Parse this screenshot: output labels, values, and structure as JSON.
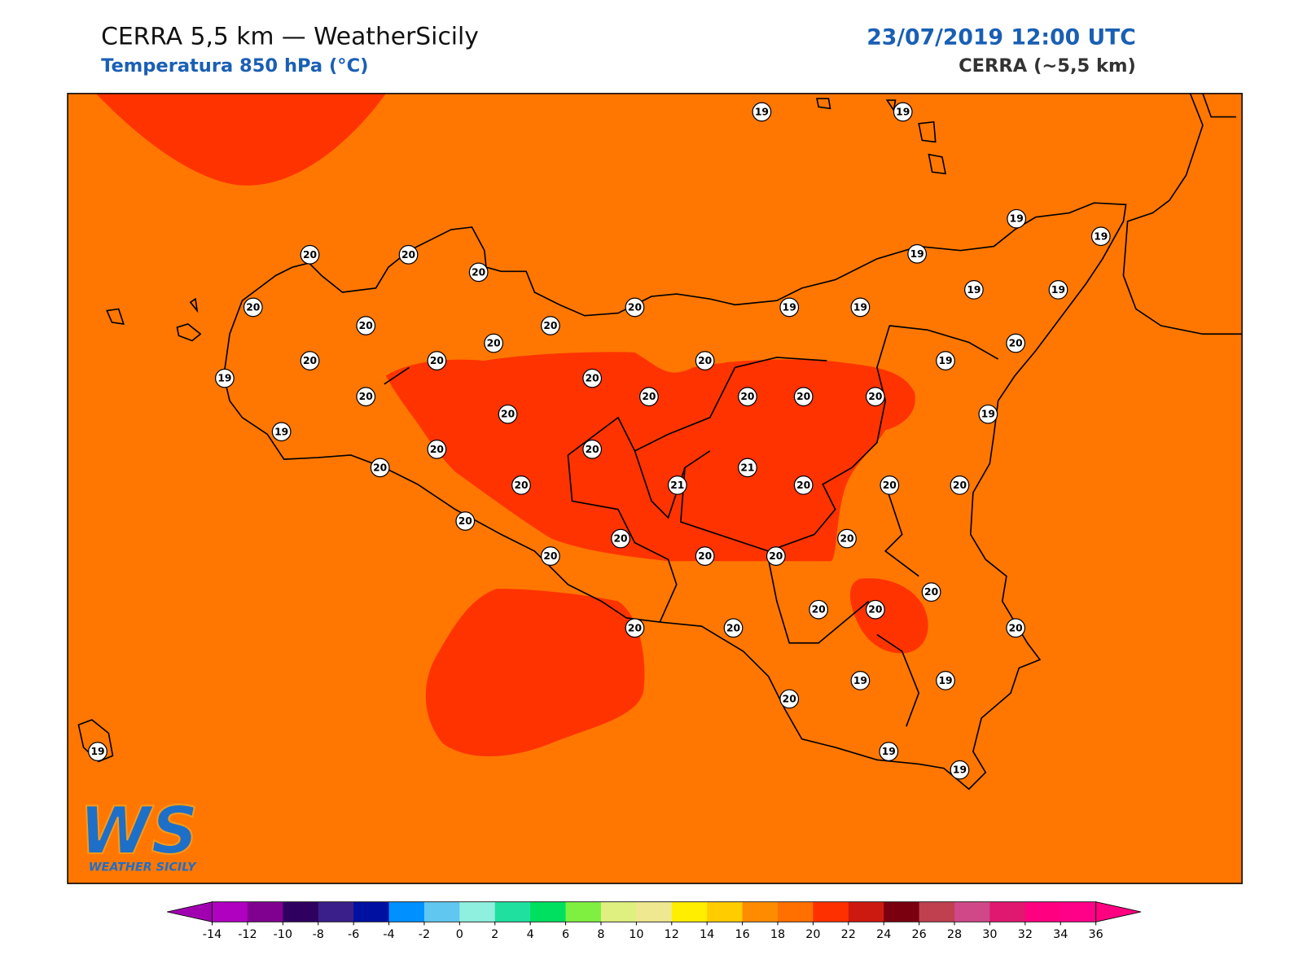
{
  "header": {
    "title": "CERRA 5,5 km — WeatherSicily",
    "subtitle": "Temperatura 850 hPa (°C)",
    "datetime": "23/07/2019 12:00 UTC",
    "model": "CERRA (~5,5 km)"
  },
  "map": {
    "field_colors": [
      "#ff7700",
      "#ff3300"
    ],
    "stations": [
      19,
      19,
      20,
      20,
      20,
      19,
      19,
      19,
      20,
      20,
      20,
      20,
      19,
      19,
      19,
      19,
      20,
      20,
      20,
      20,
      20,
      19,
      19,
      20,
      20,
      20,
      20,
      20,
      20,
      20,
      19,
      19,
      20,
      20,
      20,
      20,
      21,
      21,
      20,
      20,
      20,
      20,
      20,
      20,
      20,
      20,
      20,
      20,
      20,
      20,
      20,
      20,
      20,
      19,
      19,
      20,
      19,
      19,
      19
    ]
  },
  "colorbar": {
    "ticks": [
      -14,
      -12,
      -10,
      -8,
      -6,
      -4,
      -2,
      0,
      2,
      4,
      6,
      8,
      10,
      12,
      14,
      16,
      18,
      20,
      22,
      24,
      26,
      28,
      30,
      32,
      34,
      36
    ],
    "colors": [
      "#b000c0",
      "#800090",
      "#300060",
      "#3a1f8a",
      "#0010a0",
      "#0090ff",
      "#60c8f0",
      "#90f0e0",
      "#20e0a0",
      "#00e060",
      "#80f040",
      "#e0f080",
      "#f0e890",
      "#ffee00",
      "#ffcc00",
      "#ff8c00",
      "#ff7000",
      "#ff3000",
      "#cc1a10",
      "#7a0010",
      "#c04050",
      "#d04888",
      "#e01870",
      "#ff0080",
      "#ff0088"
    ],
    "extend_colors": [
      "#a000b0",
      "#ff0080"
    ]
  },
  "logo": {
    "mark": "WS",
    "name": "WEATHER SICILY"
  }
}
